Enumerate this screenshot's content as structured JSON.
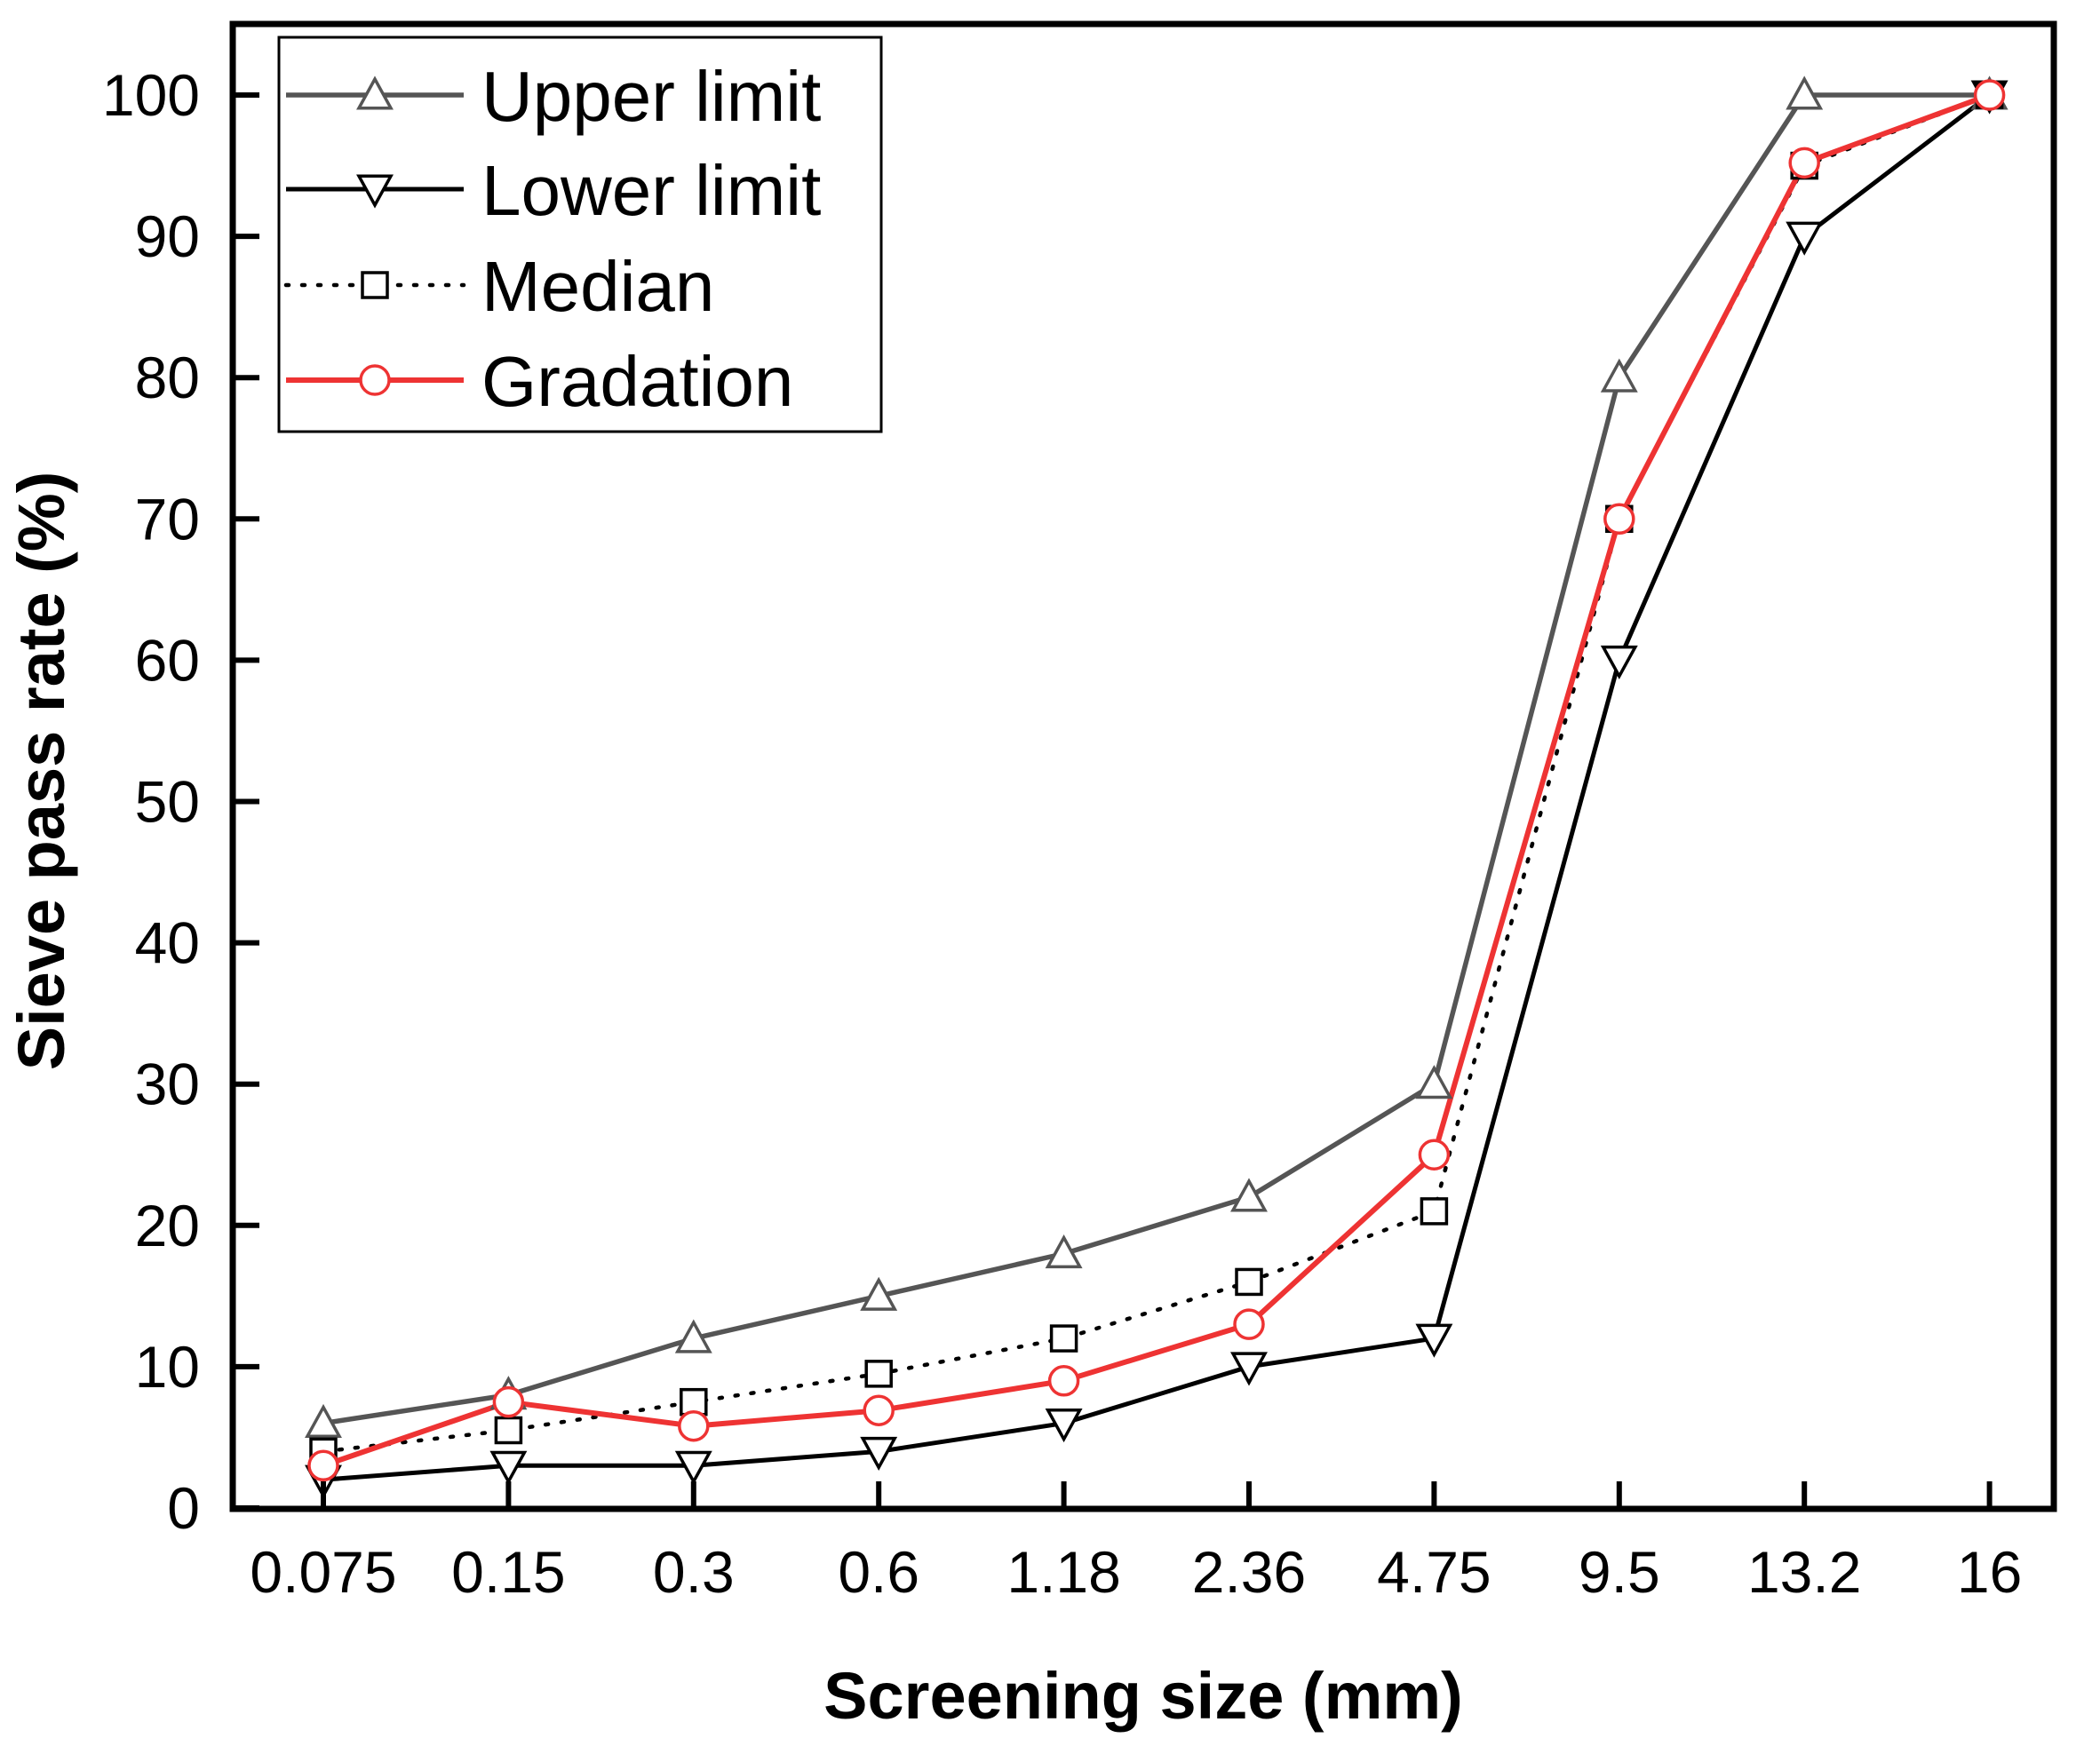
{
  "chart_data": {
    "type": "line",
    "xlabel": "Screening size (mm)",
    "ylabel": "Sieve pass rate (%)",
    "ylim": [
      0,
      100
    ],
    "yticks": [
      0,
      10,
      20,
      30,
      40,
      50,
      60,
      70,
      80,
      90,
      100
    ],
    "categories": [
      "0.075",
      "0.15",
      "0.3",
      "0.6",
      "1.18",
      "2.36",
      "4.75",
      "9.5",
      "13.2",
      "16"
    ],
    "legend_position": "top-left",
    "series": [
      {
        "name": "Upper limit",
        "marker": "triangle-up",
        "line": "solid",
        "color": "#555555",
        "values": [
          6,
          8,
          12,
          15,
          18,
          22,
          30,
          80,
          100,
          100
        ]
      },
      {
        "name": "Lower limit",
        "marker": "triangle-down",
        "line": "solid",
        "color": "#000000",
        "values": [
          2,
          3,
          3,
          4,
          6,
          10,
          12,
          60,
          90,
          100
        ]
      },
      {
        "name": "Median",
        "marker": "square",
        "line": "dotted",
        "color": "#000000",
        "values": [
          4,
          5.5,
          7.5,
          9.5,
          12,
          16,
          21,
          70,
          95,
          100
        ]
      },
      {
        "name": "Gradation",
        "marker": "circle",
        "line": "solid",
        "color": "#ee3333",
        "values": [
          3,
          7.5,
          5.8,
          6.9,
          9,
          13,
          25,
          70,
          95.2,
          100
        ]
      }
    ]
  }
}
